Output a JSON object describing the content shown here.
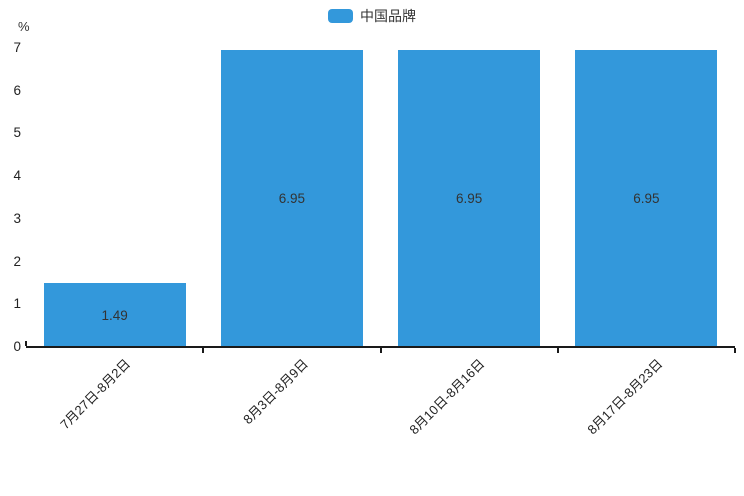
{
  "legend": {
    "items": [
      {
        "label": "中国品牌",
        "color": "#3398db"
      }
    ]
  },
  "chart_data": {
    "type": "bar",
    "title": "",
    "categories": [
      "7月27日-8月2日",
      "8月3日-8月9日",
      "8月10日-8月16日",
      "8月17日-8月23日"
    ],
    "series": [
      {
        "name": "中国品牌",
        "values": [
          1.49,
          6.95,
          6.95,
          6.95
        ],
        "color": "#3398db"
      }
    ],
    "value_labels": [
      "1.49",
      "6.95",
      "6.95",
      "6.95"
    ],
    "value_label_position": "inside-center",
    "xlabel": "",
    "ylabel": "%",
    "ylim": [
      0,
      7
    ],
    "yticks": [
      0,
      1,
      2,
      3,
      4,
      5,
      6,
      7
    ],
    "x_label_rotation": -45,
    "grid": false,
    "legend_position": "top-center"
  },
  "colors": {
    "bar": "#3398db",
    "axis": "#1a1a1a",
    "text": "#333333"
  }
}
